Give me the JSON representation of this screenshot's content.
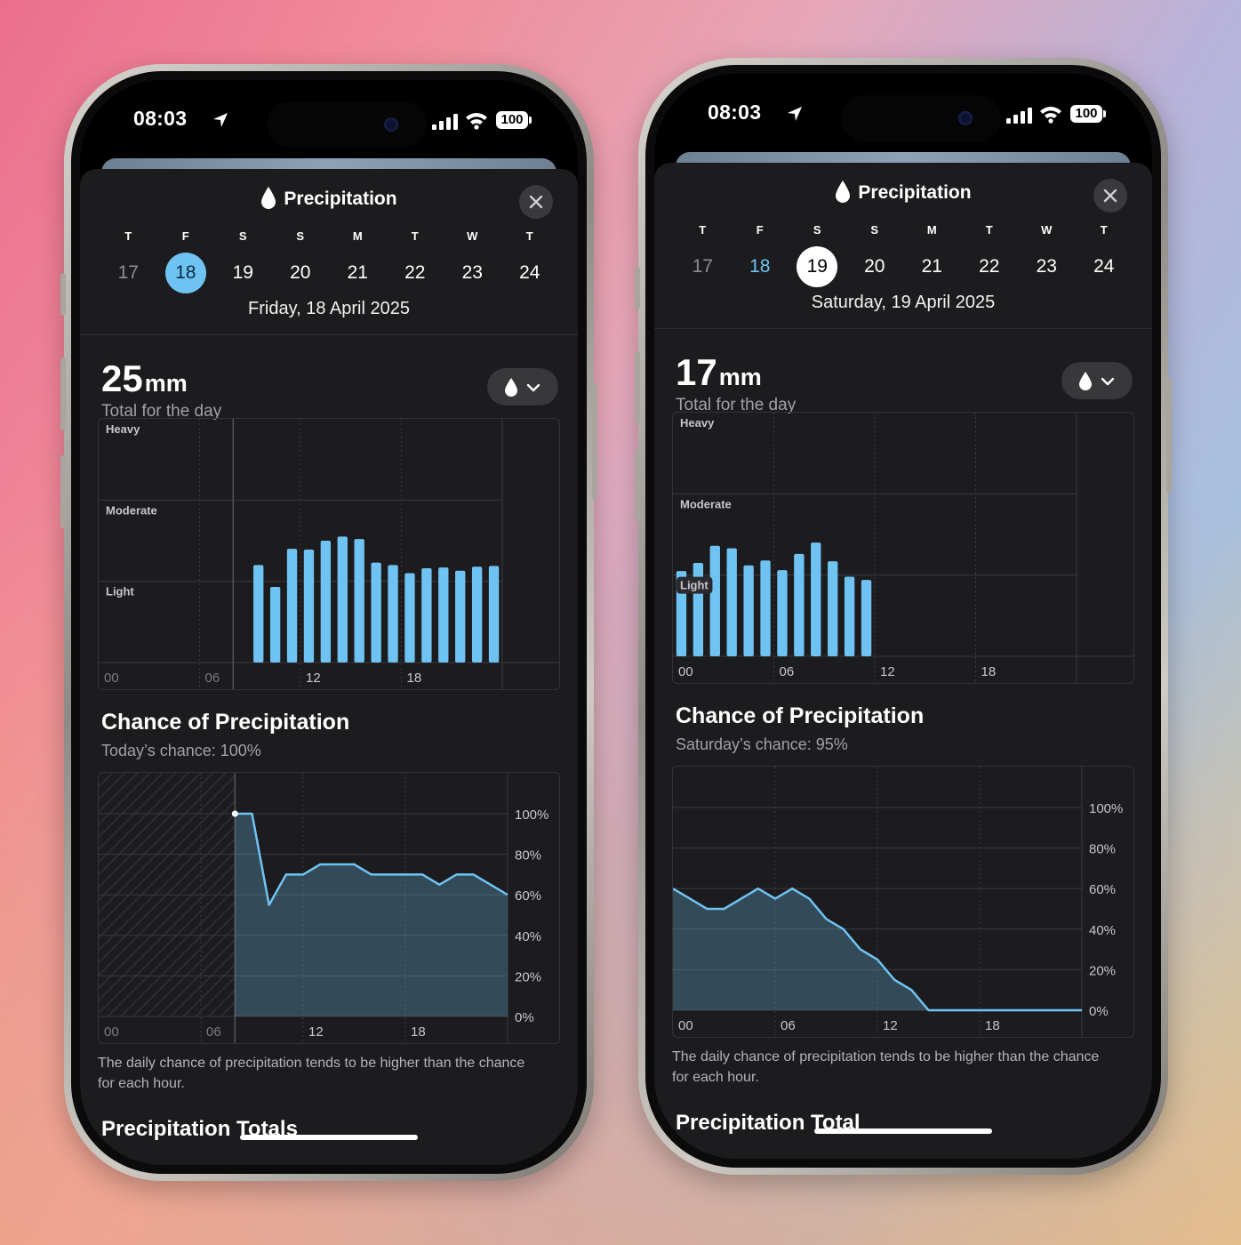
{
  "status": {
    "time": "08:03",
    "battery": "100"
  },
  "screens": [
    {
      "title": "Precipitation",
      "days": [
        {
          "letter": "T",
          "num": "17",
          "state": "past"
        },
        {
          "letter": "F",
          "num": "18",
          "state": "selected-today"
        },
        {
          "letter": "S",
          "num": "19",
          "state": "normal"
        },
        {
          "letter": "S",
          "num": "20",
          "state": "normal"
        },
        {
          "letter": "M",
          "num": "21",
          "state": "normal"
        },
        {
          "letter": "T",
          "num": "22",
          "state": "normal"
        },
        {
          "letter": "W",
          "num": "23",
          "state": "normal"
        },
        {
          "letter": "T",
          "num": "24",
          "state": "normal"
        }
      ],
      "date": "Friday, 18 April 2025",
      "total_value": "25",
      "total_unit": "mm",
      "total_label": "Total for the day",
      "chance_title": "Chance of Precipitation",
      "chance_sub": "Today’s chance: 100%",
      "note": "The daily chance of precipitation tends to be higher than the chance for each hour.",
      "bottom_title": "Precipitation Totals"
    },
    {
      "title": "Precipitation",
      "days": [
        {
          "letter": "T",
          "num": "17",
          "state": "past"
        },
        {
          "letter": "F",
          "num": "18",
          "state": "today"
        },
        {
          "letter": "S",
          "num": "19",
          "state": "selected"
        },
        {
          "letter": "S",
          "num": "20",
          "state": "normal"
        },
        {
          "letter": "M",
          "num": "21",
          "state": "normal"
        },
        {
          "letter": "T",
          "num": "22",
          "state": "normal"
        },
        {
          "letter": "W",
          "num": "23",
          "state": "normal"
        },
        {
          "letter": "T",
          "num": "24",
          "state": "normal"
        }
      ],
      "date": "Saturday, 19 April 2025",
      "total_value": "17",
      "total_unit": "mm",
      "total_label": "Total for the day",
      "chance_title": "Chance of Precipitation",
      "chance_sub": "Saturday’s chance: 95%",
      "note": "The daily chance of precipitation tends to be higher than the chance for each hour.",
      "bottom_title": "Precipitation Total"
    }
  ],
  "chart_data": [
    {
      "type": "bar",
      "x_unit": "hour",
      "x_ticks": [
        "00",
        "06",
        "12",
        "18"
      ],
      "y_levels": [
        "Heavy",
        "Moderate",
        "Light"
      ],
      "x": [
        9,
        10,
        11,
        12,
        13,
        14,
        15,
        16,
        17,
        18,
        19,
        20,
        21,
        22,
        23
      ],
      "values": [
        1.2,
        0.93,
        1.4,
        1.39,
        1.5,
        1.55,
        1.52,
        1.23,
        1.2,
        1.1,
        1.16,
        1.17,
        1.13,
        1.18,
        1.19
      ],
      "ylim": [
        0,
        3
      ],
      "current_marker_hour": 8,
      "color": "#6fc3f3"
    },
    {
      "type": "bar",
      "x_unit": "hour",
      "x_ticks": [
        "00",
        "06",
        "12",
        "18"
      ],
      "y_levels": [
        "Heavy",
        "Moderate",
        "Light"
      ],
      "x": [
        0,
        1,
        2,
        3,
        4,
        5,
        6,
        7,
        8,
        9,
        10,
        11
      ],
      "values": [
        1.05,
        1.15,
        1.36,
        1.33,
        1.12,
        1.18,
        1.06,
        1.26,
        1.4,
        1.17,
        0.98,
        0.94
      ],
      "ylim": [
        0,
        3
      ],
      "color": "#6fc3f3"
    },
    {
      "type": "area",
      "x_unit": "hour",
      "x_ticks": [
        "00",
        "06",
        "12",
        "18"
      ],
      "y_ticks": [
        "100%",
        "80%",
        "60%",
        "40%",
        "20%",
        "0%"
      ],
      "ylim": [
        0,
        100
      ],
      "past_until_hour": 8,
      "x": [
        8,
        9,
        10,
        11,
        12,
        13,
        14,
        15,
        16,
        17,
        18,
        19,
        20,
        21,
        22,
        23,
        24
      ],
      "values": [
        100,
        100,
        55,
        70,
        70,
        75,
        75,
        75,
        70,
        70,
        70,
        70,
        65,
        70,
        70,
        65,
        60
      ],
      "color": "#6fc3f3"
    },
    {
      "type": "area",
      "x_unit": "hour",
      "x_ticks": [
        "00",
        "06",
        "12",
        "18"
      ],
      "y_ticks": [
        "100%",
        "80%",
        "60%",
        "40%",
        "20%",
        "0%"
      ],
      "ylim": [
        0,
        100
      ],
      "x": [
        0,
        1,
        2,
        3,
        4,
        5,
        6,
        7,
        8,
        9,
        10,
        11,
        12,
        13,
        14,
        15,
        16,
        17,
        18,
        19,
        20,
        21,
        22,
        23,
        24
      ],
      "values": [
        60,
        55,
        50,
        50,
        55,
        60,
        55,
        60,
        55,
        45,
        40,
        30,
        25,
        15,
        10,
        0,
        0,
        0,
        0,
        0,
        0,
        0,
        0,
        0,
        0
      ],
      "color": "#6fc3f3"
    }
  ]
}
